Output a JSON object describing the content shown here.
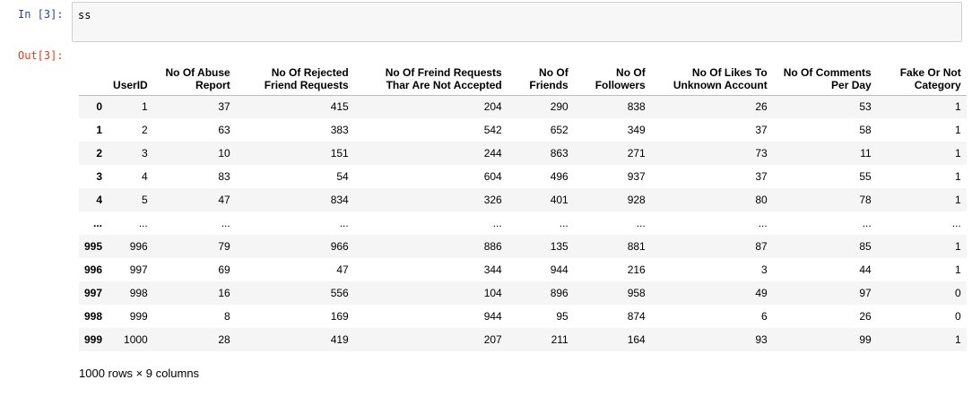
{
  "input": {
    "prompt": "In [3]:",
    "code": "ss"
  },
  "output": {
    "prompt": "Out[3]:"
  },
  "dataframe": {
    "columns": [
      "",
      "UserID",
      "No Of Abuse\nReport",
      "No Of Rejected\nFriend Requests",
      "No Of Freind Requests\nThar Are Not Accepted",
      "No Of\nFriends",
      "No Of\nFollowers",
      "No Of Likes To\nUnknown Account",
      "No Of Comments\nPer Day",
      "Fake Or Not\nCategory"
    ],
    "rows": [
      [
        "0",
        "1",
        "37",
        "415",
        "204",
        "290",
        "838",
        "26",
        "53",
        "1"
      ],
      [
        "1",
        "2",
        "63",
        "383",
        "542",
        "652",
        "349",
        "37",
        "58",
        "1"
      ],
      [
        "2",
        "3",
        "10",
        "151",
        "244",
        "863",
        "271",
        "73",
        "11",
        "1"
      ],
      [
        "3",
        "4",
        "83",
        "54",
        "604",
        "496",
        "937",
        "37",
        "55",
        "1"
      ],
      [
        "4",
        "5",
        "47",
        "834",
        "326",
        "401",
        "928",
        "80",
        "78",
        "1"
      ],
      [
        "...",
        "...",
        "...",
        "...",
        "...",
        "...",
        "...",
        "...",
        "...",
        "..."
      ],
      [
        "995",
        "996",
        "79",
        "966",
        "886",
        "135",
        "881",
        "87",
        "85",
        "1"
      ],
      [
        "996",
        "997",
        "69",
        "47",
        "344",
        "944",
        "216",
        "3",
        "44",
        "1"
      ],
      [
        "997",
        "998",
        "16",
        "556",
        "104",
        "896",
        "958",
        "49",
        "97",
        "0"
      ],
      [
        "998",
        "999",
        "8",
        "169",
        "944",
        "95",
        "874",
        "6",
        "26",
        "0"
      ],
      [
        "999",
        "1000",
        "28",
        "419",
        "207",
        "211",
        "164",
        "93",
        "99",
        "1"
      ]
    ],
    "footer": "1000 rows × 9 columns"
  }
}
